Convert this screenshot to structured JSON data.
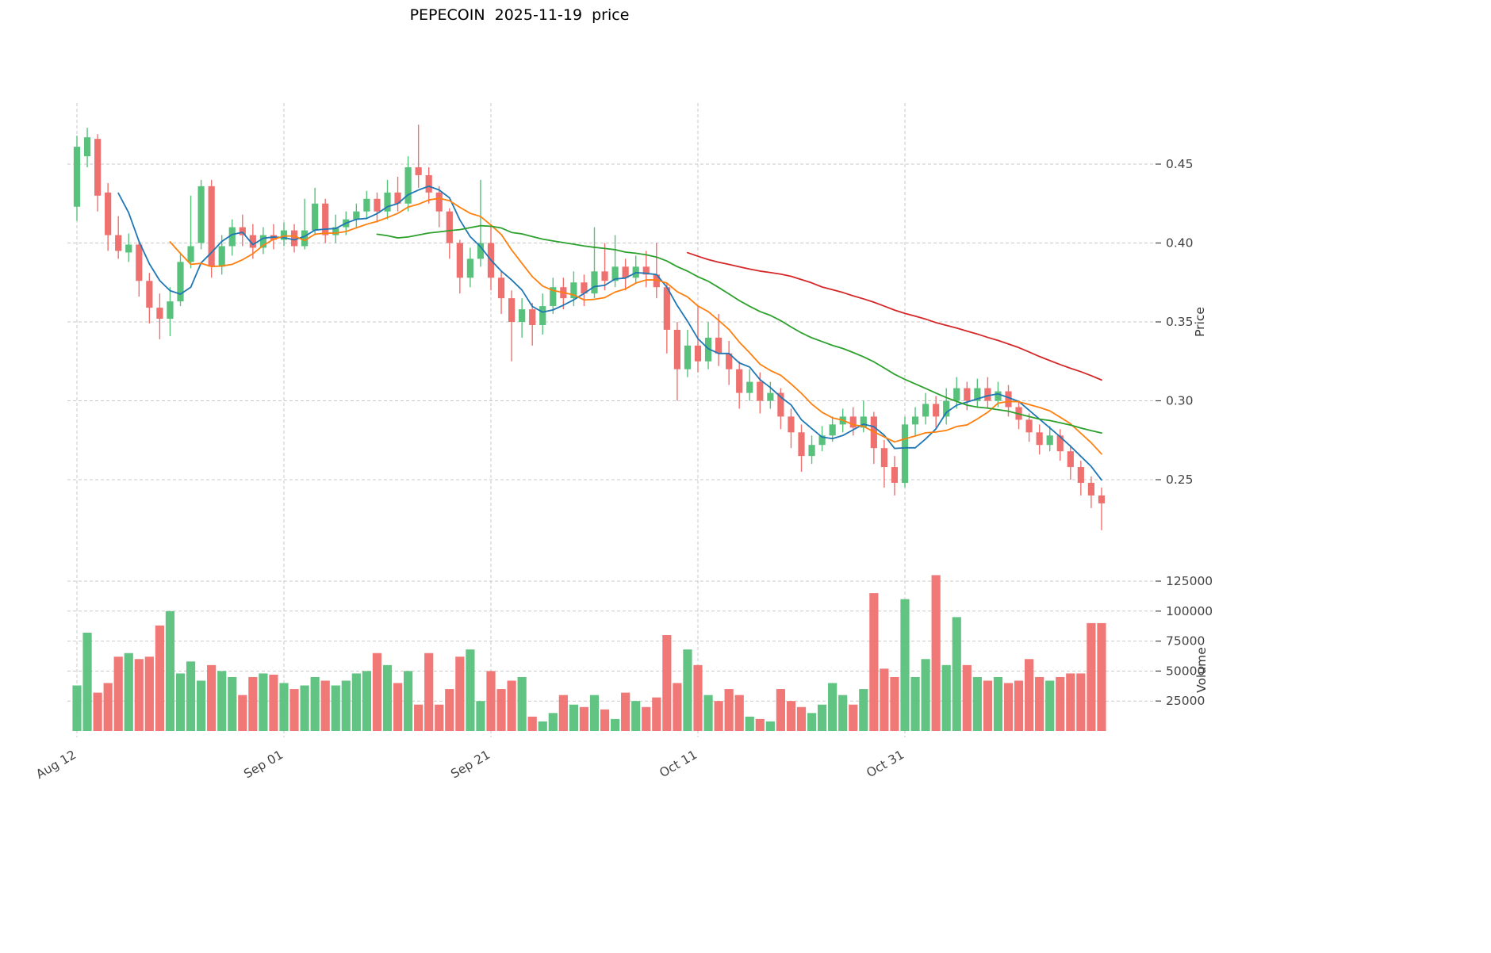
{
  "title": "PEPECOIN  2025-11-19  price",
  "axes": {
    "price_label": "Price",
    "volume_label": "Volume",
    "price_ticks": [
      0.45,
      0.4,
      0.35,
      0.3,
      0.25
    ],
    "volume_ticks": [
      125000,
      100000,
      75000,
      50000,
      25000
    ],
    "x_ticks": [
      {
        "at": 0,
        "label": "Aug 12"
      },
      {
        "at": 20,
        "label": "Sep 01"
      },
      {
        "at": 40,
        "label": "Sep 21"
      },
      {
        "at": 60,
        "label": "Oct 11"
      },
      {
        "at": 80,
        "label": "Oct 31"
      }
    ]
  },
  "chart_data": {
    "type": "candlestick+volume",
    "title": "PEPECOIN  2025-11-19  price",
    "n_points": 100,
    "x_tick_labels": [
      "Aug 12",
      "Sep 01",
      "Sep 21",
      "Oct 11",
      "Oct 31"
    ],
    "price_ylim": [
      0.21,
      0.49
    ],
    "volume_ylim": [
      0,
      137000
    ],
    "grid": true,
    "legend": false,
    "colors": {
      "up": "#58c17c",
      "down": "#ef716f",
      "grid": "#c9c9c9",
      "tick_text": "#444444"
    },
    "overlays": [
      {
        "name": "sma_5",
        "window": 5,
        "color": "#1f77b4"
      },
      {
        "name": "sma_10",
        "window": 10,
        "color": "#ff7f0e"
      },
      {
        "name": "sma_30",
        "window": 30,
        "color": "#2ca02c"
      },
      {
        "name": "sma_60",
        "window": 60,
        "color": "#d62728"
      }
    ],
    "ohlc": {
      "open": [
        0.423,
        0.455,
        0.466,
        0.432,
        0.405,
        0.394,
        0.399,
        0.376,
        0.359,
        0.352,
        0.363,
        0.388,
        0.4,
        0.436,
        0.385,
        0.398,
        0.41,
        0.405,
        0.397,
        0.405,
        0.402,
        0.408,
        0.398,
        0.408,
        0.425,
        0.405,
        0.41,
        0.415,
        0.42,
        0.428,
        0.42,
        0.432,
        0.425,
        0.448,
        0.443,
        0.432,
        0.42,
        0.4,
        0.378,
        0.39,
        0.4,
        0.378,
        0.365,
        0.35,
        0.358,
        0.348,
        0.36,
        0.372,
        0.365,
        0.375,
        0.368,
        0.382,
        0.376,
        0.385,
        0.378,
        0.385,
        0.38,
        0.372,
        0.345,
        0.32,
        0.335,
        0.325,
        0.34,
        0.33,
        0.32,
        0.305,
        0.312,
        0.3,
        0.305,
        0.29,
        0.28,
        0.265,
        0.272,
        0.278,
        0.285,
        0.29,
        0.283,
        0.29,
        0.27,
        0.258,
        0.248,
        0.285,
        0.29,
        0.298,
        0.29,
        0.3,
        0.308,
        0.3,
        0.308,
        0.3,
        0.306,
        0.296,
        0.288,
        0.28,
        0.272,
        0.278,
        0.268,
        0.258,
        0.248,
        0.24
      ],
      "high": [
        0.468,
        0.473,
        0.469,
        0.438,
        0.417,
        0.406,
        0.401,
        0.381,
        0.368,
        0.372,
        0.394,
        0.43,
        0.44,
        0.44,
        0.405,
        0.415,
        0.418,
        0.412,
        0.41,
        0.412,
        0.413,
        0.412,
        0.428,
        0.435,
        0.428,
        0.418,
        0.42,
        0.425,
        0.433,
        0.432,
        0.44,
        0.442,
        0.455,
        0.475,
        0.448,
        0.436,
        0.422,
        0.402,
        0.397,
        0.44,
        0.412,
        0.382,
        0.37,
        0.365,
        0.362,
        0.368,
        0.378,
        0.378,
        0.382,
        0.38,
        0.41,
        0.4,
        0.405,
        0.39,
        0.392,
        0.395,
        0.4,
        0.375,
        0.35,
        0.345,
        0.36,
        0.35,
        0.355,
        0.338,
        0.325,
        0.32,
        0.318,
        0.312,
        0.308,
        0.295,
        0.285,
        0.278,
        0.284,
        0.29,
        0.295,
        0.296,
        0.3,
        0.293,
        0.275,
        0.265,
        0.29,
        0.296,
        0.305,
        0.303,
        0.308,
        0.315,
        0.312,
        0.314,
        0.315,
        0.312,
        0.31,
        0.3,
        0.292,
        0.285,
        0.284,
        0.282,
        0.272,
        0.262,
        0.252,
        0.245
      ],
      "low": [
        0.414,
        0.448,
        0.42,
        0.395,
        0.39,
        0.388,
        0.366,
        0.349,
        0.339,
        0.341,
        0.36,
        0.384,
        0.396,
        0.378,
        0.38,
        0.392,
        0.398,
        0.39,
        0.393,
        0.396,
        0.398,
        0.394,
        0.396,
        0.405,
        0.4,
        0.4,
        0.405,
        0.41,
        0.415,
        0.413,
        0.415,
        0.42,
        0.42,
        0.435,
        0.425,
        0.41,
        0.39,
        0.368,
        0.372,
        0.385,
        0.37,
        0.355,
        0.325,
        0.34,
        0.335,
        0.342,
        0.355,
        0.358,
        0.36,
        0.36,
        0.365,
        0.37,
        0.372,
        0.37,
        0.374,
        0.372,
        0.365,
        0.33,
        0.3,
        0.315,
        0.318,
        0.32,
        0.322,
        0.31,
        0.295,
        0.3,
        0.292,
        0.295,
        0.282,
        0.27,
        0.255,
        0.26,
        0.268,
        0.274,
        0.28,
        0.278,
        0.28,
        0.26,
        0.245,
        0.24,
        0.245,
        0.278,
        0.285,
        0.283,
        0.285,
        0.295,
        0.294,
        0.296,
        0.295,
        0.296,
        0.29,
        0.282,
        0.274,
        0.266,
        0.268,
        0.262,
        0.25,
        0.24,
        0.232,
        0.218
      ],
      "close": [
        0.461,
        0.467,
        0.43,
        0.405,
        0.395,
        0.399,
        0.376,
        0.359,
        0.352,
        0.363,
        0.388,
        0.398,
        0.436,
        0.385,
        0.398,
        0.41,
        0.405,
        0.397,
        0.405,
        0.402,
        0.408,
        0.398,
        0.408,
        0.425,
        0.405,
        0.41,
        0.415,
        0.42,
        0.428,
        0.42,
        0.432,
        0.425,
        0.448,
        0.443,
        0.432,
        0.42,
        0.4,
        0.378,
        0.39,
        0.4,
        0.378,
        0.365,
        0.35,
        0.358,
        0.348,
        0.36,
        0.372,
        0.365,
        0.375,
        0.368,
        0.382,
        0.376,
        0.385,
        0.378,
        0.385,
        0.38,
        0.372,
        0.345,
        0.32,
        0.335,
        0.325,
        0.34,
        0.33,
        0.32,
        0.305,
        0.312,
        0.3,
        0.305,
        0.29,
        0.28,
        0.265,
        0.272,
        0.278,
        0.285,
        0.29,
        0.283,
        0.29,
        0.27,
        0.258,
        0.248,
        0.285,
        0.29,
        0.298,
        0.29,
        0.3,
        0.308,
        0.3,
        0.308,
        0.3,
        0.306,
        0.296,
        0.288,
        0.28,
        0.272,
        0.278,
        0.268,
        0.258,
        0.248,
        0.24,
        0.235
      ]
    },
    "volume": [
      38000,
      82000,
      32000,
      40000,
      62000,
      65000,
      60000,
      62000,
      88000,
      100000,
      48000,
      58000,
      42000,
      55000,
      50000,
      45000,
      30000,
      45000,
      48000,
      47000,
      40000,
      35000,
      38000,
      45000,
      42000,
      38000,
      42000,
      48000,
      50000,
      65000,
      55000,
      40000,
      50000,
      22000,
      65000,
      22000,
      35000,
      62000,
      68000,
      25000,
      50000,
      35000,
      42000,
      45000,
      12000,
      8000,
      15000,
      30000,
      22000,
      20000,
      30000,
      18000,
      10000,
      32000,
      25000,
      20000,
      28000,
      80000,
      40000,
      68000,
      55000,
      30000,
      25000,
      35000,
      30000,
      12000,
      10000,
      8000,
      35000,
      25000,
      20000,
      15000,
      22000,
      40000,
      30000,
      22000,
      35000,
      115000,
      52000,
      45000,
      110000,
      45000,
      60000,
      130000,
      55000,
      95000,
      55000,
      45000,
      42000,
      45000,
      40000,
      42000,
      60000,
      45000,
      42000,
      45000,
      48000,
      48000,
      90000,
      90000
    ]
  }
}
